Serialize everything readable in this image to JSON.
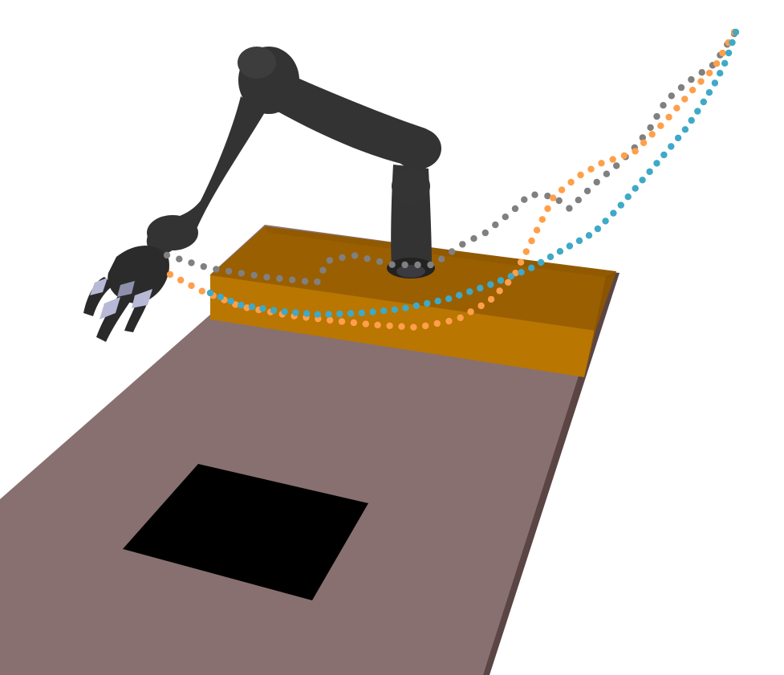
{
  "scene": {
    "background_color": "#ffffff",
    "table_color": "#887070",
    "table_edge_color": "#5a4444",
    "base_top_color": "#9a5f00",
    "base_front_color": "#b97600",
    "base_side_color": "#8a5400",
    "target_patch_color": "#000000",
    "robot_link_color": "#333333",
    "robot_highlight_color": "#555555",
    "fingertip_color": "#b7b9d6"
  },
  "trajectories": [
    {
      "name": "gray",
      "color": "#808080"
    },
    {
      "name": "orange",
      "color": "#ff9f4a"
    },
    {
      "name": "cyan",
      "color": "#3fa9c7"
    }
  ]
}
